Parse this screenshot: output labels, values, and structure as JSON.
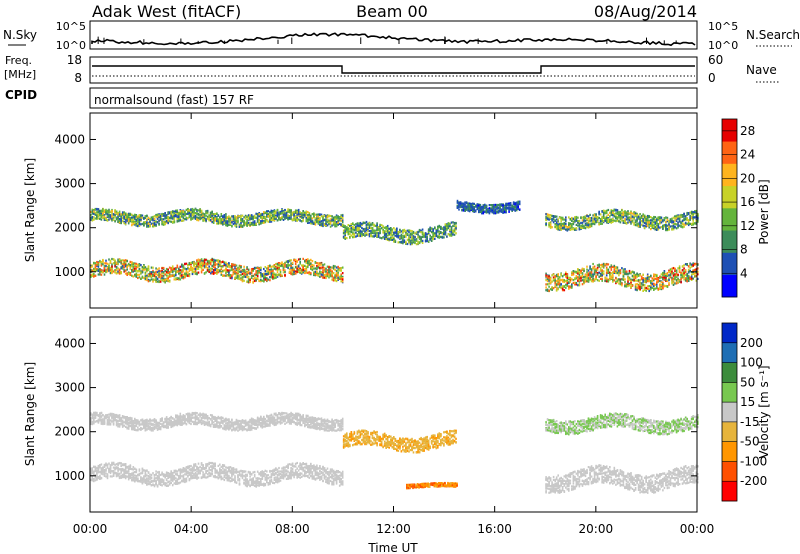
{
  "header": {
    "station": "Adak West (fitACF)",
    "beam": "Beam 00",
    "date": "08/Aug/2014"
  },
  "noise_panel": {
    "left_label": "N.Sky",
    "right_label": "N.Search",
    "left_ticks": [
      "10^5",
      "10^0"
    ],
    "right_ticks": [
      "10^5",
      "10^0"
    ]
  },
  "freq_panel": {
    "left_label_1": "Freq.",
    "left_label_2": "[MHz]",
    "right_label": "Nave",
    "left_ticks": [
      "18",
      "8"
    ],
    "right_ticks": [
      "60",
      "0"
    ]
  },
  "cpid_panel": {
    "label": "CPID",
    "text": "normalsound (fast) 157 RF"
  },
  "colors": {
    "power": [
      "#0000ff",
      "#1e50b4",
      "#3c8c5a",
      "#64b43c",
      "#c8d228",
      "#ffb41e",
      "#ff6414",
      "#e60000"
    ],
    "velocity": [
      "#ff0000",
      "#ff5000",
      "#ff9600",
      "#e6b43c",
      "#c8c8c8",
      "#78c850",
      "#3c8c3c",
      "#1e6eb4",
      "#0028c8"
    ]
  },
  "chart_data": [
    {
      "type": "heatmap",
      "title": "",
      "quantity": "Power",
      "xlabel": "",
      "ylabel": "Slant Range [km]",
      "x_ticks": [
        "00:00",
        "04:00",
        "08:00",
        "12:00",
        "16:00",
        "20:00",
        "00:00"
      ],
      "xlim_hours": [
        0,
        24
      ],
      "y_ticks": [
        1000,
        2000,
        3000,
        4000
      ],
      "ylim": [
        180,
        4600
      ],
      "colorbar_label": "Power [dB]",
      "colorbar_ticks": [
        4,
        8,
        12,
        16,
        20,
        24,
        28
      ],
      "colorbar_range": [
        0,
        30
      ],
      "echo_bands": [
        {
          "t0": 0.0,
          "t1": 10.0,
          "r_center": 1050,
          "r_halfwidth": 170,
          "value_min": 6,
          "value_max": 28
        },
        {
          "t0": 0.0,
          "t1": 10.0,
          "r_center": 2250,
          "r_halfwidth": 130,
          "value_min": 4,
          "value_max": 20
        },
        {
          "t0": 10.0,
          "t1": 14.5,
          "r_center": 1900,
          "r_halfwidth": 160,
          "value_min": 4,
          "value_max": 18
        },
        {
          "t0": 14.5,
          "t1": 17.0,
          "r_center": 2500,
          "r_halfwidth": 100,
          "value_min": 3,
          "value_max": 10
        },
        {
          "t0": 18.0,
          "t1": 24.0,
          "r_center": 2200,
          "r_halfwidth": 150,
          "value_min": 4,
          "value_max": 20
        },
        {
          "t0": 18.0,
          "t1": 24.0,
          "r_center": 900,
          "r_halfwidth": 200,
          "value_min": 6,
          "value_max": 28
        }
      ]
    },
    {
      "type": "heatmap",
      "title": "",
      "quantity": "Velocity",
      "xlabel": "Time UT",
      "ylabel": "Slant Range [km]",
      "x_ticks": [
        "00:00",
        "04:00",
        "08:00",
        "12:00",
        "16:00",
        "20:00",
        "00:00"
      ],
      "xlim_hours": [
        0,
        24
      ],
      "y_ticks": [
        1000,
        2000,
        3000,
        4000
      ],
      "ylim": [
        180,
        4600
      ],
      "colorbar_label": "Velocity [m s⁻¹]",
      "colorbar_ticks": [
        -200,
        -100,
        -50,
        -15,
        15,
        50,
        100,
        200
      ],
      "echo_bands": [
        {
          "t0": 0.0,
          "t1": 10.0,
          "r_center": 1050,
          "r_halfwidth": 170,
          "value_min": -15,
          "value_max": 15
        },
        {
          "t0": 0.0,
          "t1": 10.0,
          "r_center": 2250,
          "r_halfwidth": 130,
          "value_min": -15,
          "value_max": 15
        },
        {
          "t0": 10.0,
          "t1": 14.5,
          "r_center": 1800,
          "r_halfwidth": 160,
          "value_min": -60,
          "value_max": -15
        },
        {
          "t0": 12.5,
          "t1": 14.5,
          "r_center": 800,
          "r_halfwidth": 40,
          "value_min": -120,
          "value_max": -40
        },
        {
          "t0": 18.0,
          "t1": 24.0,
          "r_center": 2200,
          "r_halfwidth": 150,
          "value_min": -15,
          "value_max": 50
        },
        {
          "t0": 18.0,
          "t1": 24.0,
          "r_center": 950,
          "r_halfwidth": 200,
          "value_min": -15,
          "value_max": 15
        }
      ]
    }
  ]
}
